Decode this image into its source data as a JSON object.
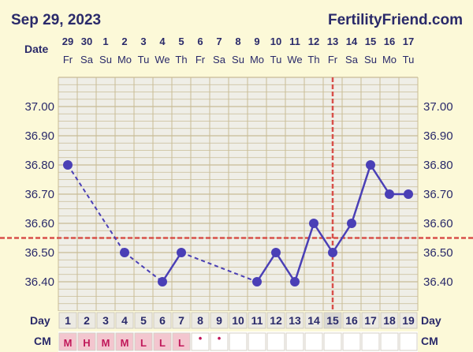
{
  "header": {
    "date": "Sep 29, 2023",
    "brand": "FertilityFriend.com"
  },
  "labels": {
    "date_row": "Date",
    "day_row": "Day",
    "cm_row": "CM"
  },
  "colors": {
    "background": "#fcf9d8",
    "plot_background": "#efeee7",
    "grid": "#c8bc96",
    "line": "#4a3fb6",
    "threshold": "#d8504a",
    "cm_box": "#f3c6cf",
    "text": "#2a2a6a"
  },
  "chart_data": {
    "type": "line",
    "title": "",
    "xlabel": "Day",
    "ylabel": "",
    "ylim": [
      36.3,
      37.1
    ],
    "y_ticks": [
      "37.00",
      "36.90",
      "36.80",
      "36.70",
      "36.60",
      "36.50",
      "36.40"
    ],
    "dates": [
      "29",
      "30",
      "1",
      "2",
      "3",
      "4",
      "5",
      "6",
      "7",
      "8",
      "9",
      "10",
      "11",
      "12",
      "13",
      "14",
      "15",
      "16",
      "17"
    ],
    "weekdays": [
      "Fr",
      "Sa",
      "Su",
      "Mo",
      "Tu",
      "We",
      "Th",
      "Fr",
      "Sa",
      "Su",
      "Mo",
      "Tu",
      "We",
      "Th",
      "Fr",
      "Sa",
      "Su",
      "Mo",
      "Tu"
    ],
    "days": [
      "1",
      "2",
      "3",
      "4",
      "5",
      "6",
      "7",
      "8",
      "9",
      "10",
      "11",
      "12",
      "13",
      "14",
      "15",
      "16",
      "17",
      "18",
      "19"
    ],
    "cervical_mucus": [
      "M",
      "H",
      "M",
      "M",
      "L",
      "L",
      "L",
      "•",
      "•",
      "",
      "",
      "",
      "",
      "",
      "",
      "",
      "",
      "",
      ""
    ],
    "series": [
      {
        "values": [
          36.8,
          null,
          null,
          36.5,
          null,
          36.4,
          36.5,
          null,
          null,
          null,
          36.4,
          36.5,
          36.4,
          36.6,
          36.5,
          36.6,
          36.8,
          36.7,
          36.7
        ]
      }
    ],
    "coverline": 36.55,
    "ovulation_day": 15,
    "grid": true
  }
}
